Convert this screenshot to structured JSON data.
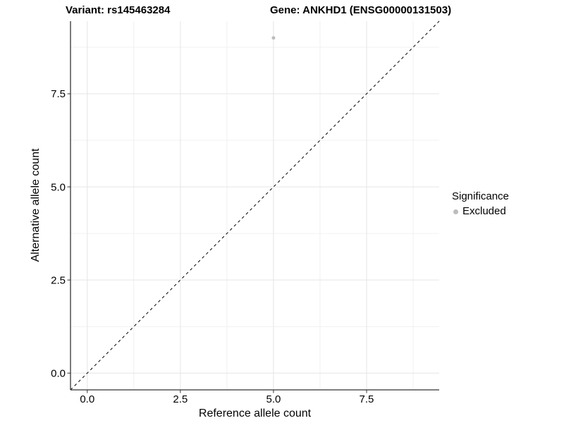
{
  "chart_data": {
    "type": "scatter",
    "title_left": "Variant: rs145463284",
    "title_right": "Gene: ANKHD1 (ENSG00000131503)",
    "xlabel": "Reference allele count",
    "ylabel": "Alternative allele count",
    "xlim": [
      -0.45,
      9.45
    ],
    "ylim": [
      -0.45,
      9.45
    ],
    "x_ticks": {
      "values": [
        0,
        2.5,
        5,
        7.5
      ],
      "labels": [
        "0.0",
        "2.5",
        "5.0",
        "7.5"
      ]
    },
    "y_ticks": {
      "values": [
        0,
        2.5,
        5,
        7.5
      ],
      "labels": [
        "0.0",
        "2.5",
        "5.0",
        "7.5"
      ]
    },
    "x_minor_ticks": [
      1.25,
      3.75,
      6.25,
      8.75
    ],
    "y_minor_ticks": [
      1.25,
      3.75,
      6.25,
      8.75
    ],
    "grid": "major+minor",
    "reference_line": {
      "type": "identity",
      "style": "dashed",
      "color": "#000000"
    },
    "series": [
      {
        "name": "Excluded",
        "color": "#bdbdbd",
        "points": [
          {
            "x": 5,
            "y": 9
          }
        ]
      }
    ],
    "legend": {
      "title": "Significance",
      "position": "right",
      "entries": [
        {
          "label": "Excluded",
          "color": "#bdbdbd",
          "marker": "circle"
        }
      ]
    },
    "colors": {
      "background": "#ffffff",
      "grid_major": "#e5e5e5",
      "grid_minor": "#f0f0f0",
      "axis_line": "#333333",
      "tick_mark": "#333333",
      "text": "#000000"
    }
  }
}
